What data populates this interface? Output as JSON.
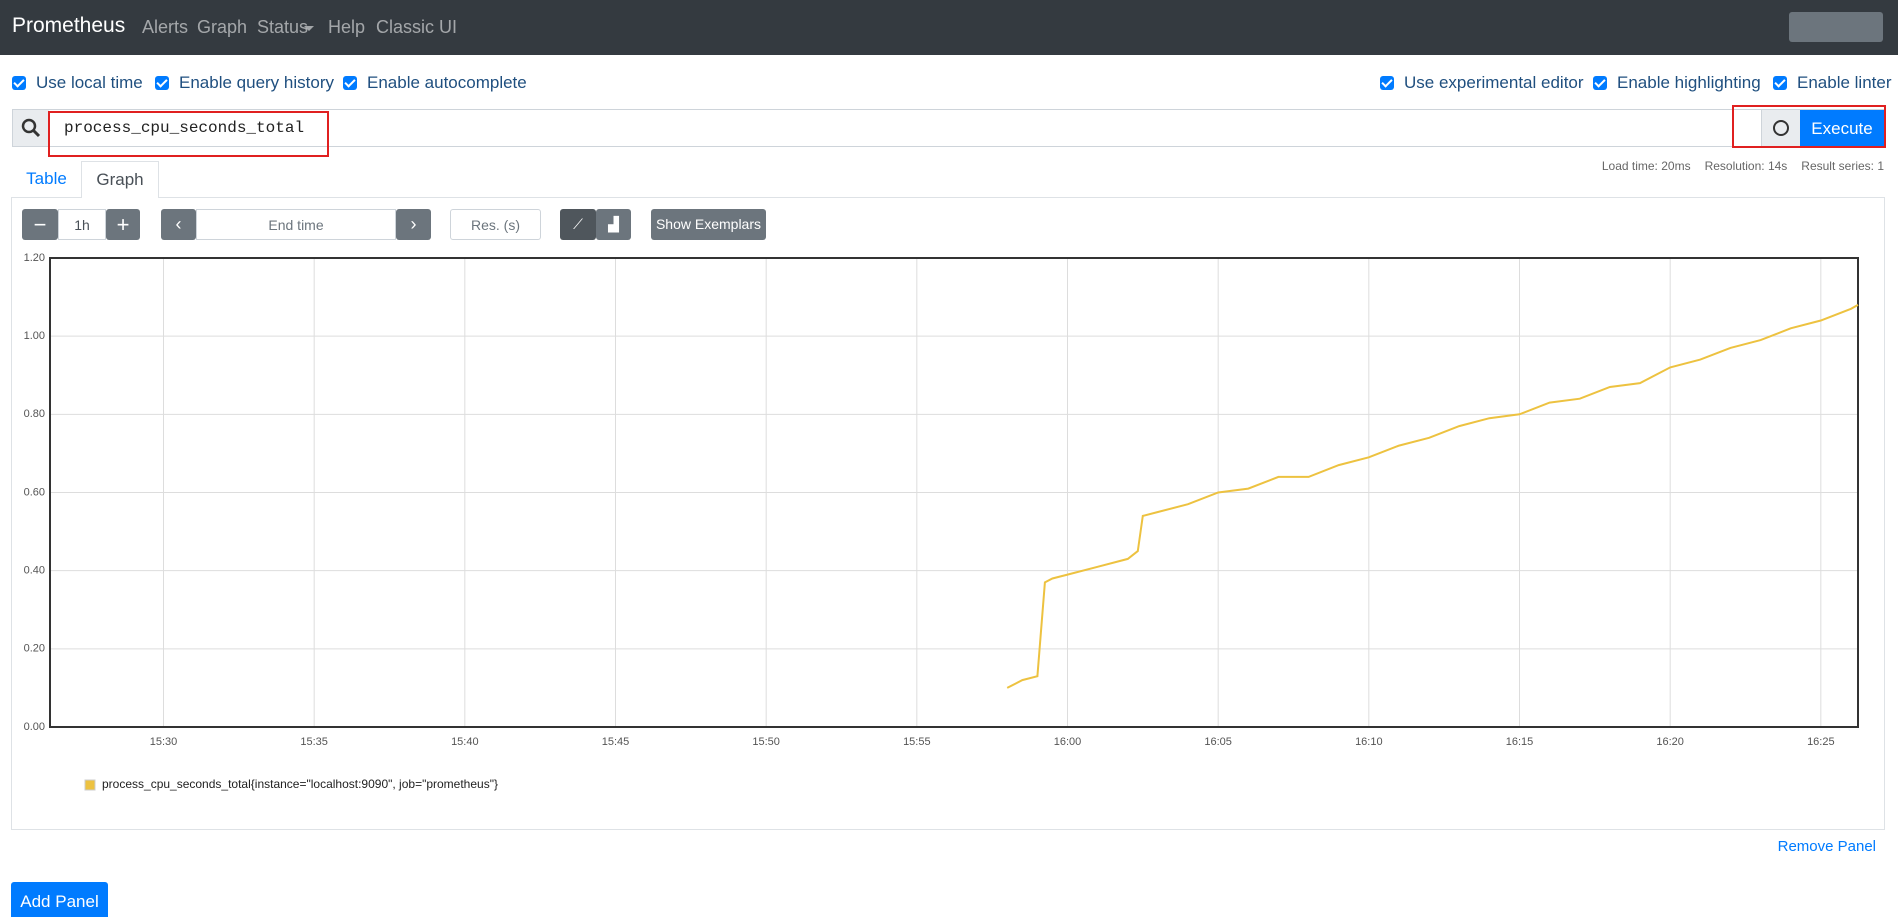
{
  "navbar": {
    "brand": "Prometheus",
    "links": [
      "Alerts",
      "Graph",
      "Status",
      "Help",
      "Classic UI"
    ]
  },
  "options": {
    "left": [
      "Use local time",
      "Enable query history",
      "Enable autocomplete"
    ],
    "right": [
      "Use experimental editor",
      "Enable highlighting",
      "Enable linter"
    ]
  },
  "query": {
    "expression": "process_cpu_seconds_total",
    "execute": "Execute"
  },
  "stats": [
    "Load time: 20ms",
    "Resolution: 14s",
    "Result series: 1"
  ],
  "tabs": [
    "Table",
    "Graph"
  ],
  "controls": {
    "range": "1h",
    "end_time": "End time",
    "resolution": "Res. (s)",
    "exemplars": "Show Exemplars"
  },
  "chart_data": {
    "type": "line",
    "x": [
      "15:58:00",
      "15:58:30",
      "15:59:00",
      "15:59:15",
      "15:59:30",
      "16:00:00",
      "16:01:00",
      "16:02:00",
      "16:02:20",
      "16:02:30",
      "16:03:00",
      "16:04:00",
      "16:05:00",
      "16:06:00",
      "16:07:00",
      "16:08:00",
      "16:09:00",
      "16:10:00",
      "16:11:00",
      "16:12:00",
      "16:13:00",
      "16:14:00",
      "16:15:00",
      "16:16:00",
      "16:17:00",
      "16:18:00",
      "16:19:00",
      "16:20:00",
      "16:21:00",
      "16:22:00",
      "16:23:00",
      "16:24:00",
      "16:25:00",
      "16:26:00",
      "16:26:14"
    ],
    "series": [
      {
        "name": "process_cpu_seconds_total{instance=\"localhost:9090\", job=\"prometheus\"}",
        "color": "#edc240",
        "values": [
          0.1,
          0.12,
          0.13,
          0.37,
          0.38,
          0.39,
          0.41,
          0.43,
          0.45,
          0.54,
          0.55,
          0.57,
          0.6,
          0.61,
          0.64,
          0.64,
          0.67,
          0.69,
          0.72,
          0.74,
          0.77,
          0.79,
          0.8,
          0.83,
          0.84,
          0.87,
          0.88,
          0.92,
          0.94,
          0.97,
          0.99,
          1.02,
          1.04,
          1.07,
          1.08
        ]
      }
    ],
    "xlim": [
      "15:26:14",
      "16:26:14"
    ],
    "xticks": [
      "15:30",
      "15:35",
      "15:40",
      "15:45",
      "15:50",
      "15:55",
      "16:00",
      "16:05",
      "16:10",
      "16:15",
      "16:20",
      "16:25"
    ],
    "ylim": [
      0,
      1.2
    ],
    "yticks": [
      {
        "value": 0,
        "label": "0.00"
      },
      {
        "value": 0.2,
        "label": "0.20"
      },
      {
        "value": 0.4,
        "label": "0.40"
      },
      {
        "value": 0.6,
        "label": "0.60"
      },
      {
        "value": 0.8,
        "label": "0.80"
      },
      {
        "value": 1.0,
        "label": "1.00"
      },
      {
        "value": 1.2,
        "label": "1.20"
      }
    ],
    "grid": true
  },
  "panel": {
    "remove": "Remove Panel",
    "add": "Add Panel"
  }
}
